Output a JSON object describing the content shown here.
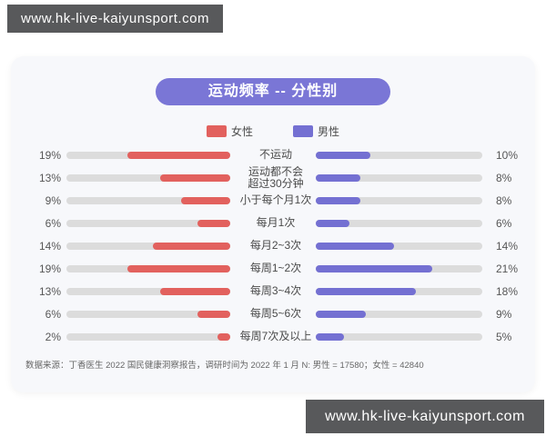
{
  "site": {
    "url": "www.hk-live-kaiyunsport.com"
  },
  "chart": {
    "title": "运动频率 -- 分性别",
    "footnote": "数据来源：丁香医生 2022 国民健康洞察报告，调研时间为 2022 年 1 月 N: 男性 = 17580；女性 = 42840"
  },
  "colors": {
    "female": "#E2615E",
    "male": "#7470D2",
    "track": "#DCDCDC",
    "title_bg": "#7A76D6",
    "banner_bg": "#58595B",
    "card_bg": "#F7F8FB"
  },
  "chart_data": {
    "type": "bar",
    "orientation": "horizontal-bidirectional",
    "title": "运动频率 -- 分性别",
    "categories": [
      "不运动",
      "运动都不会\n超过30分钟",
      "小于每个月1次",
      "每月1次",
      "每月2~3次",
      "每周1~2次",
      "每周3~4次",
      "每周5~6次",
      "每周7次及以上"
    ],
    "series": [
      {
        "name": "女性",
        "values": [
          19,
          13,
          9,
          6,
          14,
          19,
          13,
          6,
          2
        ]
      },
      {
        "name": "男性",
        "values": [
          10,
          8,
          8,
          6,
          14,
          21,
          18,
          9,
          5
        ]
      }
    ],
    "value_unit": "%",
    "xlim": [
      0,
      30
    ],
    "legend_position": "top",
    "grid": false
  }
}
